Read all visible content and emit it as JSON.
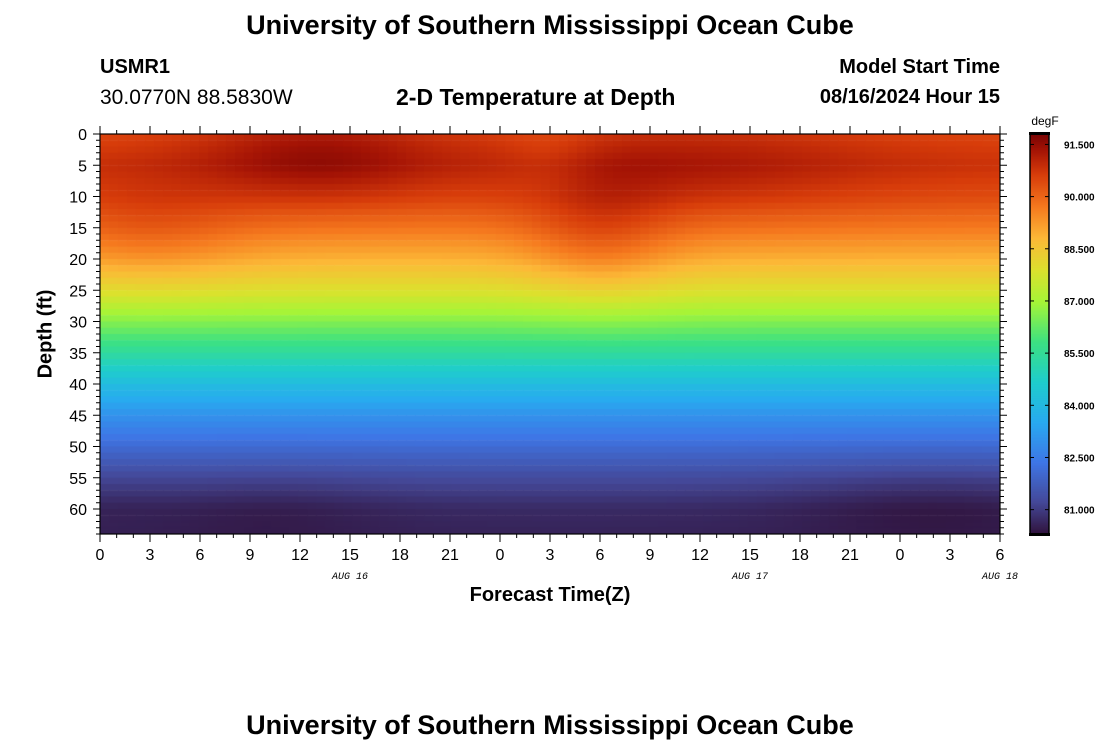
{
  "header": {
    "title": "University of Southern Mississippi Ocean Cube",
    "station": "USMR1",
    "coordinates": "30.0770N  88.5830W",
    "subtitle": "2-D Temperature at Depth",
    "start_label": "Model Start Time",
    "start_value": "08/16/2024 Hour 15"
  },
  "footer": {
    "title": "University of Southern Mississippi Ocean Cube"
  },
  "chart_data": {
    "type": "heatmap",
    "title": "2-D Temperature at Depth",
    "xlabel": "Forecast Time(Z)",
    "ylabel": "Depth (ft)",
    "x_tick_labels": [
      "0",
      "3",
      "6",
      "9",
      "12",
      "15",
      "18",
      "21",
      "0",
      "3",
      "6",
      "9",
      "12",
      "15",
      "18",
      "21",
      "0",
      "3",
      "6"
    ],
    "date_labels": [
      {
        "label": "AUG 16",
        "hour": 15
      },
      {
        "label": "AUG 17",
        "hour": 39
      },
      {
        "label": "AUG 18",
        "hour": 54
      }
    ],
    "x_range_hours": [
      0,
      54
    ],
    "y_ticks": [
      0,
      5,
      10,
      15,
      20,
      25,
      30,
      35,
      40,
      45,
      50,
      55,
      60
    ],
    "ylim": [
      0,
      64
    ],
    "colorbar": {
      "unit": "degF",
      "ticks": [
        "91.500",
        "90.000",
        "88.500",
        "87.000",
        "85.500",
        "84.000",
        "82.500",
        "81.000"
      ],
      "range": [
        80.3,
        91.8
      ]
    },
    "depth_profile": {
      "depths": [
        0,
        5,
        10,
        15,
        20,
        25,
        30,
        35,
        40,
        45,
        50,
        55,
        60,
        64
      ],
      "temps": [
        90.5,
        90.8,
        90.4,
        89.7,
        88.9,
        87.9,
        86.6,
        85.4,
        84.1,
        83.0,
        82.1,
        81.3,
        80.7,
        80.6
      ]
    },
    "anomalies": [
      {
        "hour": 13,
        "depth": 3,
        "dt": 0.8,
        "sx": 5,
        "sy": 6
      },
      {
        "hour": 35,
        "depth": 5,
        "dt": 0.5,
        "sx": 8,
        "sy": 7
      },
      {
        "hour": 3,
        "depth": 16,
        "dt": 0.5,
        "sx": 4,
        "sy": 6
      },
      {
        "hour": 30,
        "depth": 17,
        "dt": 0.7,
        "sx": 3,
        "sy": 7
      },
      {
        "hour": 27,
        "depth": 3,
        "dt": -0.3,
        "sx": 2,
        "sy": 5
      },
      {
        "hour": 10,
        "depth": 60,
        "dt": -0.2,
        "sx": 5,
        "sy": 5
      },
      {
        "hour": 50,
        "depth": 59,
        "dt": -0.3,
        "sx": 6,
        "sy": 5
      },
      {
        "hour": 0,
        "depth": 58,
        "dt": -0.1,
        "sx": 3,
        "sy": 4
      }
    ]
  }
}
